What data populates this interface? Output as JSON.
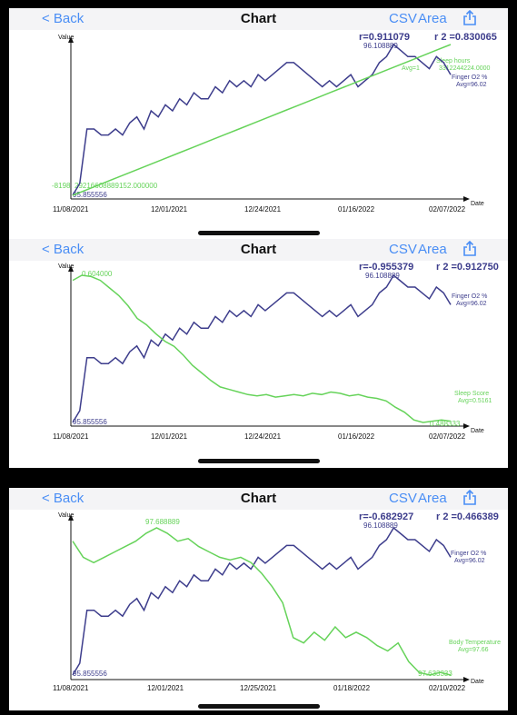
{
  "screens": [
    {
      "nav": {
        "back_label": "< Back",
        "title": "Chart",
        "csv_label": "CSV",
        "area_label": "Area"
      },
      "chart": {
        "ylabel": "Value",
        "xlabel": "Date",
        "r_label": "r=0.911079",
        "r2_label": "r 2 =0.830065",
        "x_ticks": [
          "11/08/2021",
          "12/01/2021",
          "12/24/2021",
          "01/16/2022",
          "02/07/2022"
        ],
        "max_label": "96.108889",
        "min_label": "95.855556",
        "other_label": "-8198",
        "other_label_b": "29216608889152.000000",
        "series_a_name": "Finger O2 %",
        "series_a_avg": "Avg=96.02",
        "series_b_name": "Sleep hours",
        "series_b_avg": "Avg=1",
        "series_b_avg_tail": "3312244224.0000"
      }
    },
    {
      "nav": {
        "back_label": "< Back",
        "title": "Chart",
        "csv_label": "CSV",
        "area_label": "Area"
      },
      "chart": {
        "ylabel": "Value",
        "xlabel": "Date",
        "r_label": "r=-0.955379",
        "r2_label": "r 2 =0.912750",
        "x_ticks": [
          "11/08/2021",
          "12/01/2021",
          "12/24/2021",
          "01/16/2022",
          "02/07/2022"
        ],
        "max_label": "96.108889",
        "min_label": "95.855556",
        "other_max_label": "0.604000",
        "other_min_label": "0.488333",
        "series_a_name": "Finger O2 %",
        "series_a_avg": "Avg=96.02",
        "series_b_name": "Sleep Score",
        "series_b_avg": "Avg=0.5161"
      }
    },
    {
      "nav": {
        "back_label": "< Back",
        "title": "Chart",
        "csv_label": "CSV",
        "area_label": "Area"
      },
      "chart": {
        "ylabel": "Value",
        "xlabel": "Date",
        "r_label": "r=-0.682927",
        "r2_label": "r 2 =0.466389",
        "x_ticks": [
          "11/08/2021",
          "12/01/2021",
          "12/25/2021",
          "01/18/2022",
          "02/10/2022"
        ],
        "max_label": "96.108889",
        "min_label": "95.855556",
        "other_max_label": "97.688889",
        "other_min_label": "97.633333",
        "series_a_name": "Finger O2 %",
        "series_a_avg": "Avg=96.02",
        "series_b_name": "Body Temperature",
        "series_b_avg": "Avg=97.66"
      }
    }
  ],
  "colors": {
    "series_a": "#3d3d8c",
    "series_b": "#66d35a",
    "accent": "#4a8ef5",
    "axis": "#111111"
  },
  "icons": {
    "share": "share-icon"
  },
  "chart_data": [
    {
      "type": "line",
      "xlabel": "Date",
      "ylabel": "Value",
      "x_ticks": [
        "11/08/2021",
        "12/01/2021",
        "12/24/2021",
        "01/16/2022",
        "02/07/2022"
      ],
      "series": [
        {
          "name": "Finger O2 %",
          "values": [
            95.86,
            95.88,
            95.97,
            95.97,
            95.96,
            95.96,
            95.97,
            95.96,
            95.98,
            95.99,
            95.97,
            96.0,
            95.99,
            96.01,
            96.0,
            96.02,
            96.01,
            96.03,
            96.02,
            96.02,
            96.04,
            96.03,
            96.05,
            96.04,
            96.05,
            96.04,
            96.06,
            96.05,
            96.06,
            96.07,
            96.08,
            96.08,
            96.07,
            96.06,
            96.05,
            96.04,
            96.05,
            96.04,
            96.05,
            96.06,
            96.04,
            96.05,
            96.06,
            96.08,
            96.09,
            96.11,
            96.1,
            96.09,
            96.09,
            96.08,
            96.07,
            96.09,
            96.08,
            96.06
          ]
        },
        {
          "name": "Sleep hours",
          "values": [
            0.0,
            0.04,
            0.08,
            0.12,
            0.16,
            0.2,
            0.24,
            0.28,
            0.32,
            0.36,
            0.4,
            0.44,
            0.48,
            0.52,
            0.56,
            0.6,
            0.64,
            0.68,
            0.72,
            0.76,
            0.8,
            0.84,
            0.88,
            0.92,
            0.96,
            1.0
          ]
        }
      ]
    },
    {
      "type": "line",
      "xlabel": "Date",
      "ylabel": "Value",
      "x_ticks": [
        "11/08/2021",
        "12/01/2021",
        "12/24/2021",
        "01/16/2022",
        "02/07/2022"
      ],
      "series": [
        {
          "name": "Finger O2 %",
          "values": [
            95.86,
            95.88,
            95.97,
            95.97,
            95.96,
            95.96,
            95.97,
            95.96,
            95.98,
            95.99,
            95.97,
            96.0,
            95.99,
            96.01,
            96.0,
            96.02,
            96.01,
            96.03,
            96.02,
            96.02,
            96.04,
            96.03,
            96.05,
            96.04,
            96.05,
            96.04,
            96.06,
            96.05,
            96.06,
            96.07,
            96.08,
            96.08,
            96.07,
            96.06,
            96.05,
            96.04,
            96.05,
            96.04,
            96.05,
            96.06,
            96.04,
            96.05,
            96.06,
            96.08,
            96.09,
            96.11,
            96.1,
            96.09,
            96.09,
            96.08,
            96.07,
            96.09,
            96.08,
            96.06
          ]
        },
        {
          "name": "Sleep Score",
          "values": [
            0.6,
            0.604,
            0.603,
            0.6,
            0.594,
            0.588,
            0.58,
            0.57,
            0.565,
            0.558,
            0.552,
            0.548,
            0.541,
            0.533,
            0.527,
            0.521,
            0.516,
            0.514,
            0.512,
            0.51,
            0.509,
            0.51,
            0.508,
            0.509,
            0.51,
            0.509,
            0.511,
            0.51,
            0.512,
            0.511,
            0.509,
            0.51,
            0.508,
            0.507,
            0.505,
            0.5,
            0.496,
            0.49,
            0.488,
            0.489,
            0.49,
            0.489
          ]
        }
      ]
    },
    {
      "type": "line",
      "xlabel": "Date",
      "ylabel": "Value",
      "x_ticks": [
        "11/08/2021",
        "12/01/2021",
        "12/25/2021",
        "01/18/2022",
        "02/10/2022"
      ],
      "series": [
        {
          "name": "Finger O2 %",
          "values": [
            95.86,
            95.88,
            95.97,
            95.97,
            95.96,
            95.96,
            95.97,
            95.96,
            95.98,
            95.99,
            95.97,
            96.0,
            95.99,
            96.01,
            96.0,
            96.02,
            96.01,
            96.03,
            96.02,
            96.02,
            96.04,
            96.03,
            96.05,
            96.04,
            96.05,
            96.04,
            96.06,
            96.05,
            96.06,
            96.07,
            96.08,
            96.08,
            96.07,
            96.06,
            96.05,
            96.04,
            96.05,
            96.04,
            96.05,
            96.06,
            96.04,
            96.05,
            96.06,
            96.08,
            96.09,
            96.11,
            96.1,
            96.09,
            96.09,
            96.08,
            96.07,
            96.09,
            96.08,
            96.06
          ]
        },
        {
          "name": "Body Temperature",
          "values": [
            97.683,
            97.677,
            97.675,
            97.677,
            97.679,
            97.681,
            97.683,
            97.686,
            97.688,
            97.686,
            97.683,
            97.684,
            97.681,
            97.679,
            97.677,
            97.676,
            97.677,
            97.675,
            97.671,
            97.666,
            97.66,
            97.647,
            97.645,
            97.649,
            97.646,
            97.651,
            97.647,
            97.649,
            97.647,
            97.644,
            97.642,
            97.645,
            97.638,
            97.634,
            97.633,
            97.634,
            97.633
          ]
        }
      ]
    }
  ]
}
